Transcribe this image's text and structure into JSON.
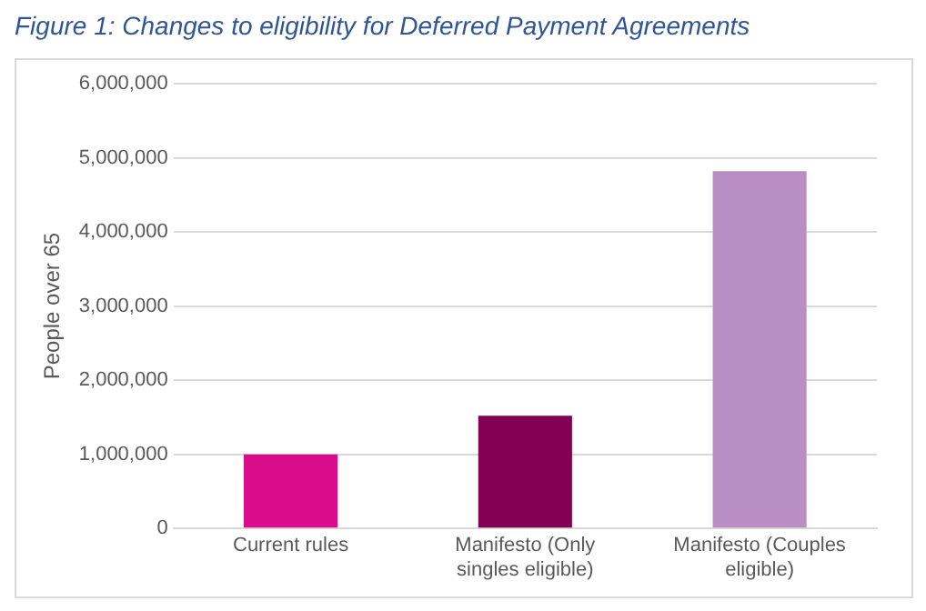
{
  "chart_data": {
    "type": "bar",
    "title": "Figure 1: Changes to eligibility for Deferred Payment Agreements",
    "ylabel": "People over 65",
    "categories": [
      "Current rules",
      "Manifesto (Only singles eligible)",
      "Manifesto (Couples eligible)"
    ],
    "values": [
      1000000,
      1520000,
      4820000
    ],
    "colors": [
      "#d90c8c",
      "#820053",
      "#b98fc3"
    ],
    "ylim": [
      0,
      6000000
    ],
    "yticks": [
      {
        "value": 0,
        "label": "0"
      },
      {
        "value": 1000000,
        "label": "1,000,000"
      },
      {
        "value": 2000000,
        "label": "2,000,000"
      },
      {
        "value": 3000000,
        "label": "3,000,000"
      },
      {
        "value": 4000000,
        "label": "4,000,000"
      },
      {
        "value": 5000000,
        "label": "5,000,000"
      },
      {
        "value": 6000000,
        "label": "6,000,000"
      }
    ],
    "grid": "y"
  }
}
